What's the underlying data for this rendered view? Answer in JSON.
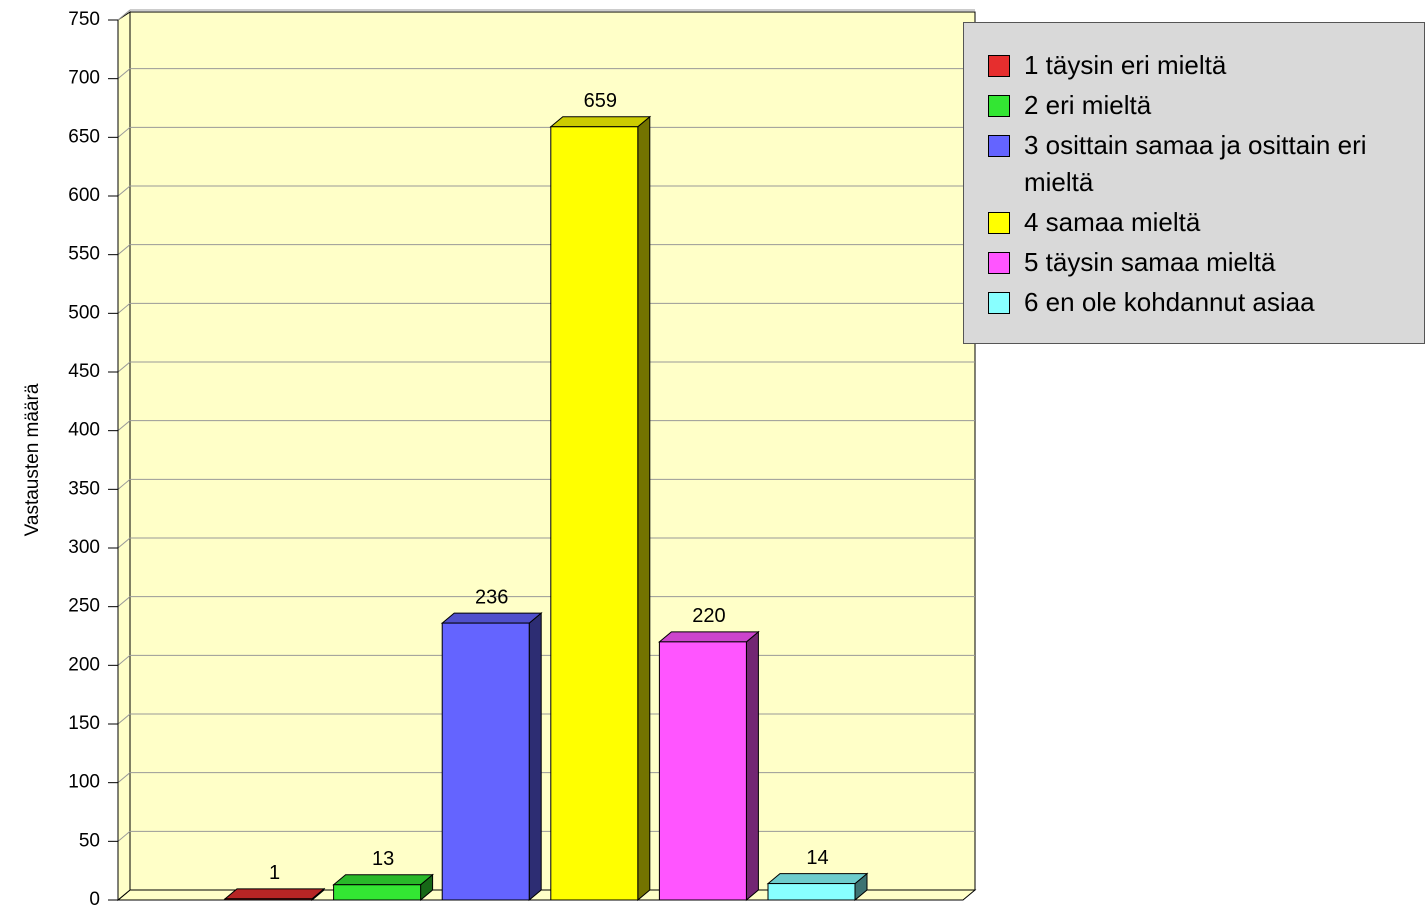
{
  "chart_data": {
    "type": "bar3d",
    "y_label": "Vastausten määrä",
    "categories": [
      "1 täysin eri mieltä",
      "2 eri mieltä",
      "3 osittain samaa ja osittain eri mieltä",
      "4 samaa mieltä",
      "5 täysin samaa mieltä",
      "6 en ole kohdannut asiaa"
    ],
    "values": [
      1,
      13,
      236,
      659,
      220,
      14
    ],
    "colors": [
      "#e62e2e",
      "#33e633",
      "#6464ff",
      "#ffff00",
      "#ff55ff",
      "#88ffff"
    ],
    "ylim": [
      0,
      750
    ],
    "yticks": [
      0,
      50,
      100,
      150,
      200,
      250,
      300,
      350,
      400,
      450,
      500,
      550,
      600,
      650,
      700,
      750
    ],
    "grid": true,
    "legend": "top-right"
  }
}
